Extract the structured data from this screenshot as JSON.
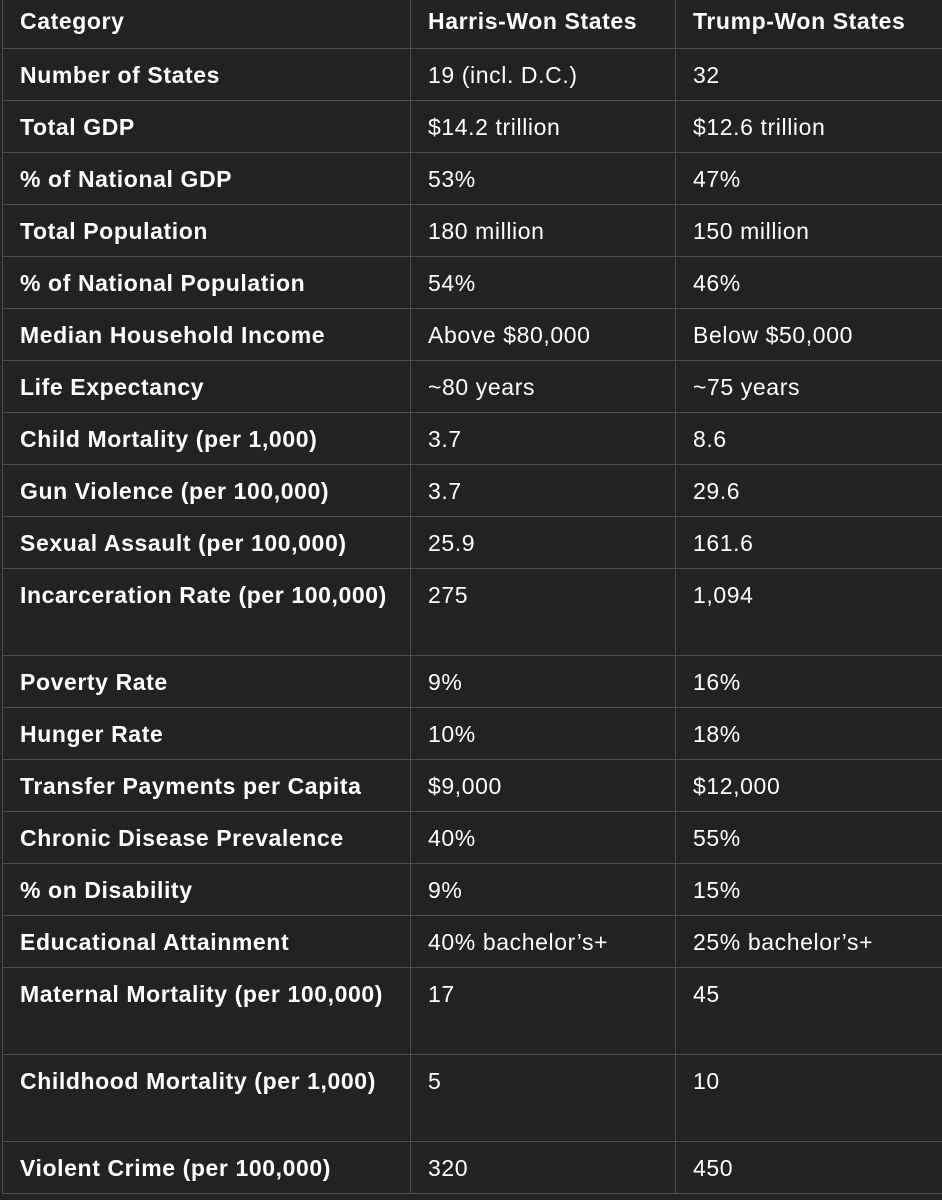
{
  "chart_data": {
    "type": "table",
    "columns": [
      "Category",
      "Harris-Won States",
      "Trump-Won States"
    ],
    "rows": [
      [
        "Number of States",
        "19 (incl. D.C.)",
        "32"
      ],
      [
        "Total GDP",
        "$14.2 trillion",
        "$12.6 trillion"
      ],
      [
        "% of National GDP",
        "53%",
        "47%"
      ],
      [
        "Total Population",
        "180 million",
        "150 million"
      ],
      [
        "% of National Population",
        "54%",
        "46%"
      ],
      [
        "Median Household Income",
        "Above $80,000",
        "Below $50,000"
      ],
      [
        "Life Expectancy",
        "~80 years",
        "~75 years"
      ],
      [
        "Child Mortality (per 1,000)",
        "3.7",
        "8.6"
      ],
      [
        "Gun Violence (per 100,000)",
        "3.7",
        "29.6"
      ],
      [
        "Sexual Assault (per 100,000)",
        "25.9",
        "161.6"
      ],
      [
        "Incarceration Rate (per 100,000)",
        "275",
        "1,094"
      ],
      [
        "Poverty Rate",
        "9%",
        "16%"
      ],
      [
        "Hunger Rate",
        "10%",
        "18%"
      ],
      [
        "Transfer Payments per Capita",
        "$9,000",
        "$12,000"
      ],
      [
        "Chronic Disease Prevalence",
        "40%",
        "55%"
      ],
      [
        "% on Disability",
        "9%",
        "15%"
      ],
      [
        "Educational Attainment",
        "40% bachelor’s+",
        "25% bachelor’s+"
      ],
      [
        "Maternal Mortality (per 100,000)",
        "17",
        "45"
      ],
      [
        "Childhood Mortality (per 1,000)",
        "5",
        "10"
      ],
      [
        "Violent Crime (per 100,000)",
        "320",
        "450"
      ]
    ]
  }
}
